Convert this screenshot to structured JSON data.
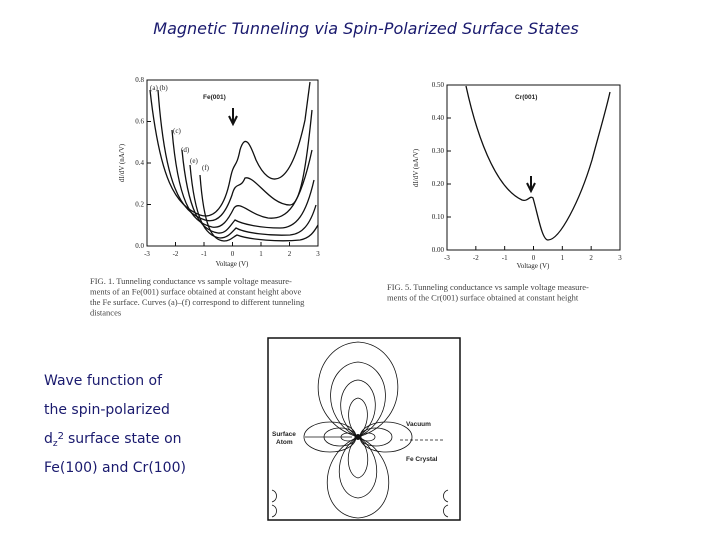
{
  "title": "Magnetic Tunneling via Spin-Polarized Surface States",
  "figure_fe": {
    "label": "Fe(001)",
    "y_axis": "dI/dV (nA/V)",
    "x_axis": "Voltage (V)",
    "yticks": [
      "0.8",
      "0.6",
      "0.4",
      "0.2",
      "0.0"
    ],
    "xticks": [
      "-3",
      "-2",
      "-1",
      "0",
      "1",
      "2",
      "3"
    ],
    "curve_labels": [
      "(a) (b)",
      "(c)",
      "(d)",
      "(e)",
      "(f)"
    ],
    "caption": [
      "FIG. 1.  Tunneling conductance vs sample voltage measure-",
      "ments of an Fe(001) surface obtained at constant height above",
      "the Fe surface. Curves (a)–(f) correspond to different tunneling",
      "distances"
    ]
  },
  "figure_cr": {
    "label": "Cr(001)",
    "y_axis": "dI/dV (nA/V)",
    "x_axis": "Voltage (V)",
    "yticks": [
      "0.50",
      "0.40",
      "0.30",
      "0.20",
      "0.10",
      "0.00"
    ],
    "xticks": [
      "-3",
      "-2",
      "-1",
      "0",
      "1",
      "2",
      "3"
    ],
    "caption": [
      "FIG. 5.  Tunneling conductance vs sample voltage measure-",
      "ments of the Cr(001) surface obtained at constant height"
    ]
  },
  "description": {
    "lines": [
      "Wave function of",
      "the spin-polarized",
      "surface state on",
      "Fe(100) and Cr(100)"
    ],
    "orbital": {
      "base": "d",
      "sub": "z",
      "sup": "2"
    }
  },
  "diagram": {
    "vacuum": "Vacuum",
    "surface_atom": [
      "Surface",
      "Atom"
    ],
    "crystal": "Fe Crystal"
  }
}
